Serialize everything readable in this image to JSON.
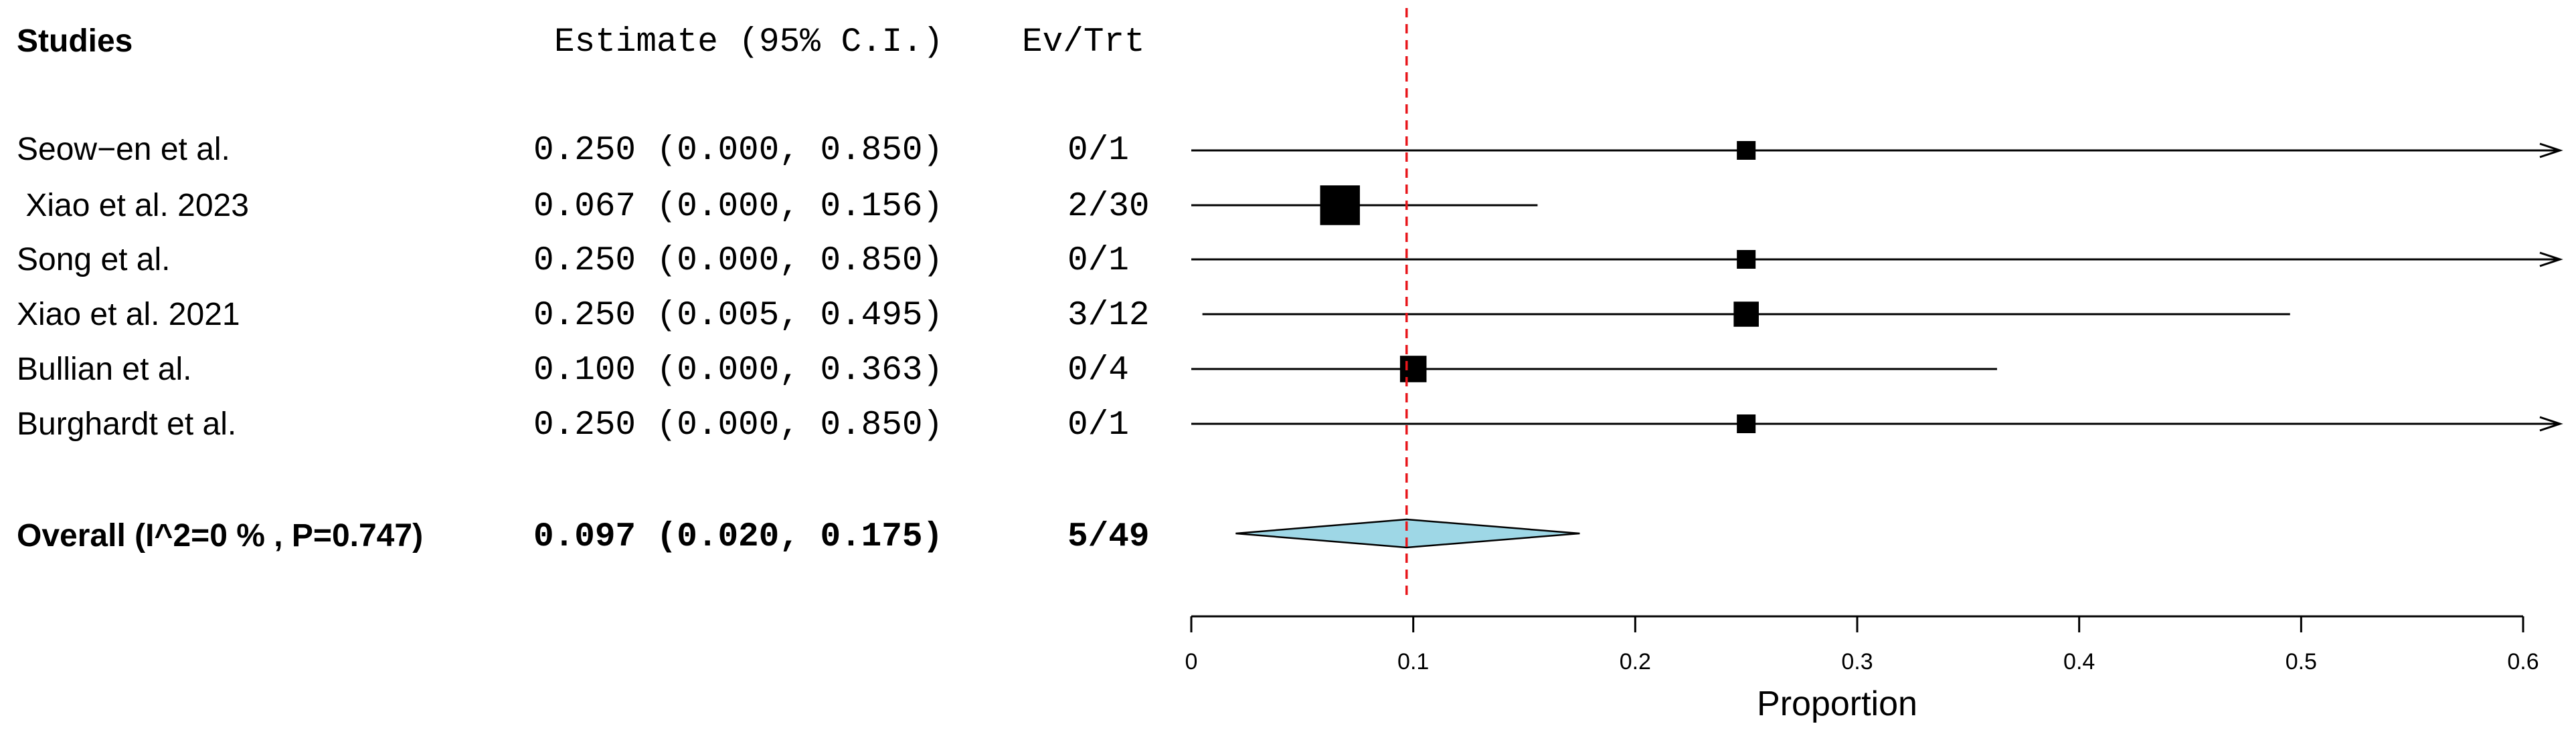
{
  "columns": {
    "studies": "Studies",
    "estimate": "Estimate (95% C.I.)",
    "events": "Ev/Trt"
  },
  "studies": [
    {
      "name": "Seow−en et al.",
      "estimate_text": "0.250 (0.000, 0.850)",
      "events_text": "0/1"
    },
    {
      "name": " Xiao et al. 2023",
      "estimate_text": "0.067 (0.000, 0.156)",
      "events_text": "2/30"
    },
    {
      "name": "Song et al.",
      "estimate_text": "0.250 (0.000, 0.850)",
      "events_text": "0/1"
    },
    {
      "name": "Xiao et al. 2021",
      "estimate_text": "0.250 (0.005, 0.495)",
      "events_text": "3/12"
    },
    {
      "name": "Bullian et al.",
      "estimate_text": "0.100 (0.000, 0.363)",
      "events_text": "0/4"
    },
    {
      "name": "Burghardt et al.",
      "estimate_text": "0.250 (0.000, 0.850)",
      "events_text": "0/1"
    }
  ],
  "overall": {
    "name": "Overall (I^2=0 % , P=0.747)",
    "estimate_text": "0.097 (0.020, 0.175)",
    "events_text": "5/49"
  },
  "chart_data": {
    "type": "forest",
    "xlabel": "Proportion",
    "xlim": [
      0,
      0.6
    ],
    "xticks": [
      "0",
      "0.1",
      "0.2",
      "0.3",
      "0.4",
      "0.5",
      "0.6"
    ],
    "reference_line": 0.097,
    "reference_line_style": "dashed",
    "colors": {
      "reference_line": "#e8161b",
      "diamond_fill": "#9ed7e6",
      "marker": "#000000"
    },
    "studies": [
      {
        "name": "Seow−en et al.",
        "estimate": 0.25,
        "lower": 0.0,
        "upper": 0.85,
        "events": 0,
        "total": 1,
        "marker_weight": 1
      },
      {
        "name": " Xiao et al. 2023",
        "estimate": 0.067,
        "lower": 0.0,
        "upper": 0.156,
        "events": 2,
        "total": 30,
        "marker_weight": 4.5
      },
      {
        "name": "Song et al.",
        "estimate": 0.25,
        "lower": 0.0,
        "upper": 0.85,
        "events": 0,
        "total": 1,
        "marker_weight": 1
      },
      {
        "name": "Xiao et al. 2021",
        "estimate": 0.25,
        "lower": 0.005,
        "upper": 0.495,
        "events": 3,
        "total": 12,
        "marker_weight": 1.8
      },
      {
        "name": "Bullian et al.",
        "estimate": 0.1,
        "lower": 0.0,
        "upper": 0.363,
        "events": 0,
        "total": 4,
        "marker_weight": 2
      },
      {
        "name": "Burghardt et al.",
        "estimate": 0.25,
        "lower": 0.0,
        "upper": 0.85,
        "events": 0,
        "total": 1,
        "marker_weight": 1
      }
    ],
    "overall": {
      "estimate": 0.097,
      "lower": 0.02,
      "upper": 0.175,
      "events": 5,
      "total": 49
    }
  }
}
